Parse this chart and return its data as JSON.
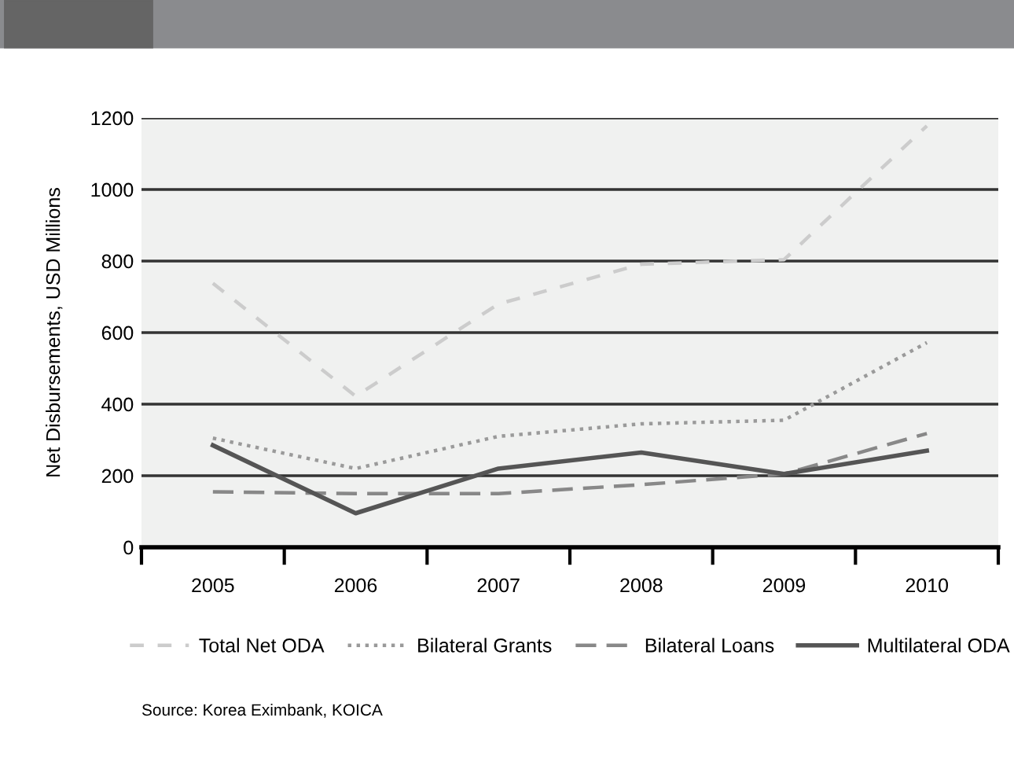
{
  "chart_data": {
    "type": "line",
    "ylabel": "Net Disbursements, USD Millions",
    "categories": [
      "2005",
      "2006",
      "2007",
      "2008",
      "2009",
      "2010"
    ],
    "ylim": [
      0,
      1200
    ],
    "yticks": [
      0,
      200,
      400,
      600,
      800,
      1000,
      1200
    ],
    "grid": "y",
    "legend": "bottom",
    "series": [
      {
        "name": "Total Net ODA",
        "color": "#cccccc",
        "line_style": "dashed",
        "values": [
          738,
          422,
          680,
          791,
          804,
          1178
        ]
      },
      {
        "name": "Bilateral Grants",
        "color": "#9a9a9a",
        "line_style": "dotted",
        "values": [
          305,
          220,
          310,
          345,
          355,
          572
        ]
      },
      {
        "name": "Bilateral Loans",
        "color": "#888888",
        "line_style": "loosedash",
        "values": [
          155,
          150,
          150,
          175,
          205,
          318
        ]
      },
      {
        "name": "Multilateral ODA",
        "color": "#555555",
        "line_style": "solid",
        "values": [
          285,
          95,
          220,
          265,
          205,
          270
        ]
      }
    ],
    "annotations": [
      "Source: Korea Eximbank, KOICA"
    ]
  }
}
